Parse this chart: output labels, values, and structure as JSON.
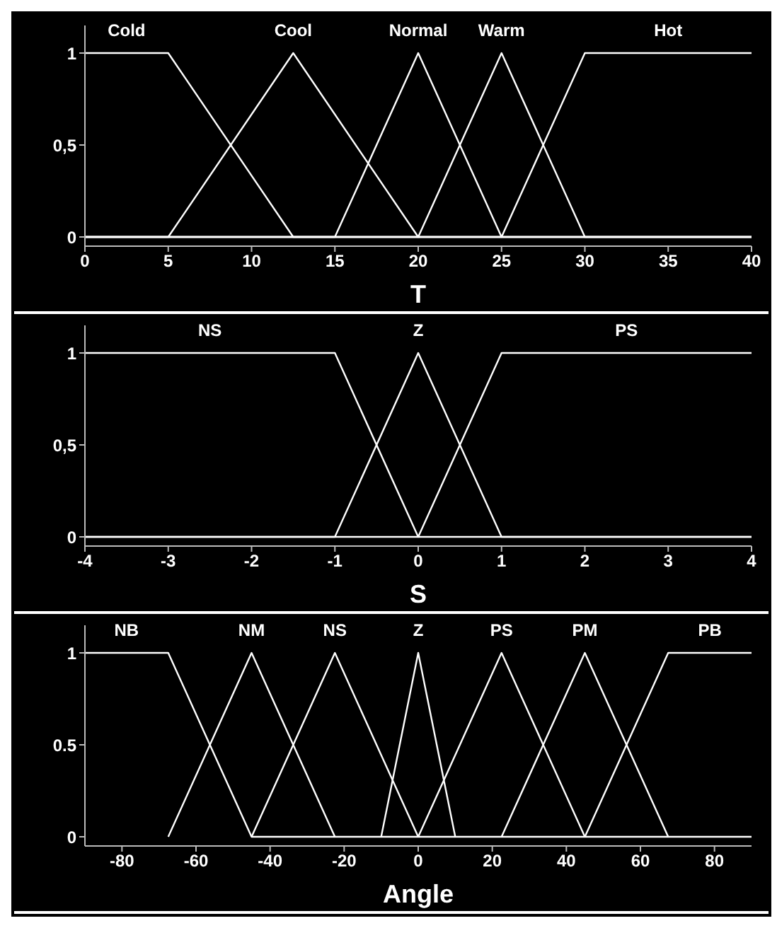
{
  "chart_data": [
    {
      "type": "line",
      "xlabel": "T",
      "xlim": [
        0,
        40
      ],
      "xticks": [
        0,
        5,
        10,
        15,
        20,
        25,
        30,
        35,
        40
      ],
      "ylim": [
        -0.05,
        1.15
      ],
      "yticks": [
        0,
        {
          "value": 0.5,
          "label": "0,5"
        },
        1
      ],
      "legend": false,
      "marker": "none",
      "line_style": "solid",
      "grid": false,
      "series": [
        {
          "name": "Cold",
          "color": "#ffffff",
          "x": [
            0,
            5,
            12.5,
            40
          ],
          "values": [
            1,
            1,
            0,
            0
          ]
        },
        {
          "name": "Cool",
          "color": "#ffffff",
          "x": [
            0,
            5,
            12.5,
            20,
            40
          ],
          "values": [
            0,
            0,
            1,
            0,
            0
          ]
        },
        {
          "name": "Normal",
          "color": "#ffffff",
          "x": [
            0,
            15,
            20,
            25,
            40
          ],
          "values": [
            0,
            0,
            1,
            0,
            0
          ]
        },
        {
          "name": "Warm",
          "color": "#ffffff",
          "x": [
            0,
            20,
            25,
            30,
            40
          ],
          "values": [
            0,
            0,
            1,
            0,
            0
          ]
        },
        {
          "name": "Hot",
          "color": "#ffffff",
          "x": [
            0,
            25,
            30,
            40
          ],
          "values": [
            0,
            0,
            1,
            1
          ]
        }
      ]
    },
    {
      "type": "line",
      "xlabel": "S",
      "xlim": [
        -4,
        4
      ],
      "xticks": [
        -4,
        -3,
        -2,
        -1,
        0,
        1,
        2,
        3,
        4
      ],
      "ylim": [
        -0.05,
        1.15
      ],
      "yticks": [
        0,
        {
          "value": 0.5,
          "label": "0,5"
        },
        1
      ],
      "legend": false,
      "marker": "none",
      "line_style": "solid",
      "grid": false,
      "series": [
        {
          "name": "NS",
          "color": "#ffffff",
          "x": [
            -4,
            -1,
            0,
            4
          ],
          "values": [
            1,
            1,
            0,
            0
          ]
        },
        {
          "name": "Z",
          "color": "#ffffff",
          "x": [
            -4,
            -1,
            0,
            1,
            4
          ],
          "values": [
            0,
            0,
            1,
            0,
            0
          ]
        },
        {
          "name": "PS",
          "color": "#ffffff",
          "x": [
            -4,
            0,
            1,
            4
          ],
          "values": [
            0,
            0,
            1,
            1
          ]
        }
      ]
    },
    {
      "type": "line",
      "xlabel": "Angle",
      "xlim": [
        -90,
        90
      ],
      "xticks": [
        -80,
        -60,
        -40,
        -20,
        0,
        20,
        40,
        60,
        80
      ],
      "ylim": [
        -0.05,
        1.15
      ],
      "yticks": [
        0,
        0.5,
        1
      ],
      "legend": false,
      "marker": "none",
      "line_style": "solid",
      "grid": false,
      "series": [
        {
          "name": "NB",
          "color": "#ffffff",
          "x": [
            -90,
            -67.5,
            -45,
            90
          ],
          "values": [
            1,
            1,
            0,
            0
          ]
        },
        {
          "name": "NM",
          "color": "#ffffff",
          "x": [
            -67.5,
            -45,
            -22.5
          ],
          "values": [
            0,
            1,
            0
          ]
        },
        {
          "name": "NS",
          "color": "#ffffff",
          "x": [
            -45,
            -22.5,
            0
          ],
          "values": [
            0,
            1,
            0
          ]
        },
        {
          "name": "Z",
          "color": "#ffffff",
          "x": [
            -10,
            0,
            10
          ],
          "values": [
            0,
            1,
            0
          ]
        },
        {
          "name": "PS",
          "color": "#ffffff",
          "x": [
            0,
            22.5,
            45
          ],
          "values": [
            0,
            1,
            0
          ]
        },
        {
          "name": "PM",
          "color": "#ffffff",
          "x": [
            22.5,
            45,
            67.5
          ],
          "values": [
            0,
            1,
            0
          ]
        },
        {
          "name": "PB",
          "color": "#ffffff",
          "x": [
            45,
            67.5,
            90
          ],
          "values": [
            0,
            1,
            1
          ]
        }
      ]
    }
  ]
}
